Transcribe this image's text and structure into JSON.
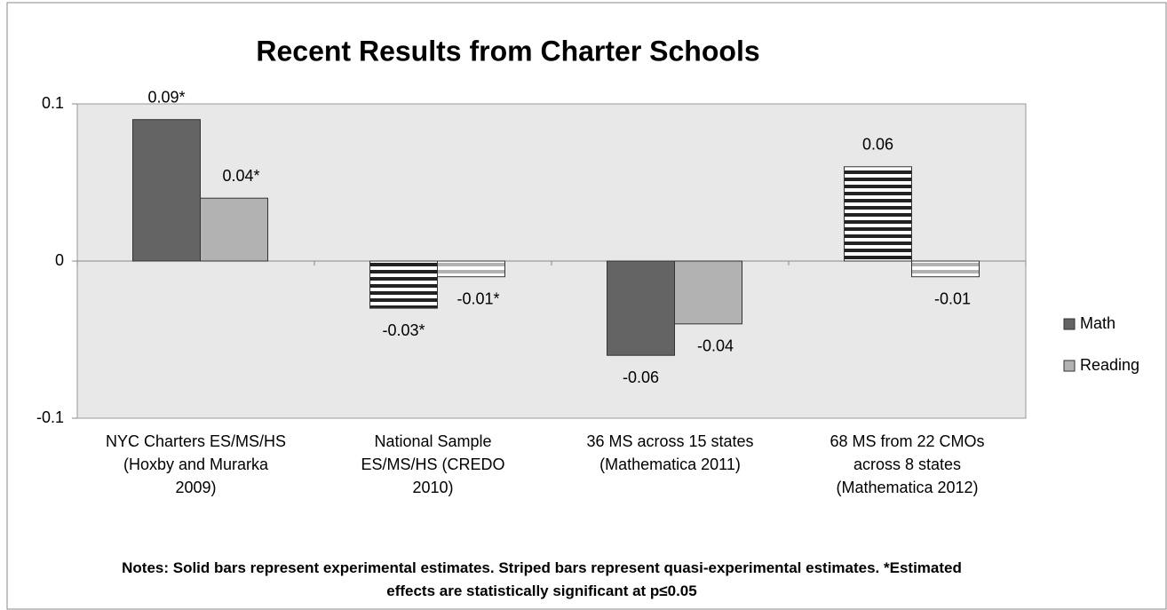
{
  "chart_data": {
    "type": "bar",
    "title": "Recent Results from Charter Schools",
    "categories": [
      "NYC Charters ES/MS/HS\n(Hoxby and Murarka\n2009)",
      "National Sample\nES/MS/HS (CREDO\n2010)",
      "36 MS across 15 states\n(Mathematica 2011)",
      "68 MS from 22 CMOs\nacross 8 states\n(Mathematica 2012)"
    ],
    "series": [
      {
        "name": "Math",
        "color": "#646464",
        "values": [
          0.09,
          -0.03,
          -0.06,
          0.06
        ],
        "value_labels": [
          "0.09*",
          "-0.03*",
          "-0.06",
          "0.06"
        ],
        "patterns": [
          "solid",
          "striped",
          "solid",
          "striped"
        ]
      },
      {
        "name": "Reading",
        "color": "#b2b2b2",
        "values": [
          0.04,
          -0.01,
          -0.04,
          -0.01
        ],
        "value_labels": [
          "0.04*",
          "-0.01*",
          "-0.04",
          "-0.01"
        ],
        "patterns": [
          "solid",
          "striped",
          "solid",
          "striped"
        ]
      }
    ],
    "ylim": [
      -0.1,
      0.1
    ],
    "yticks": [
      -0.1,
      0,
      0.1
    ],
    "legend": "right",
    "notes": "Notes: Solid bars represent experimental estimates. Striped bars represent quasi-experimental estimates. *Estimated effects are statistically significant at p≤0.05"
  }
}
